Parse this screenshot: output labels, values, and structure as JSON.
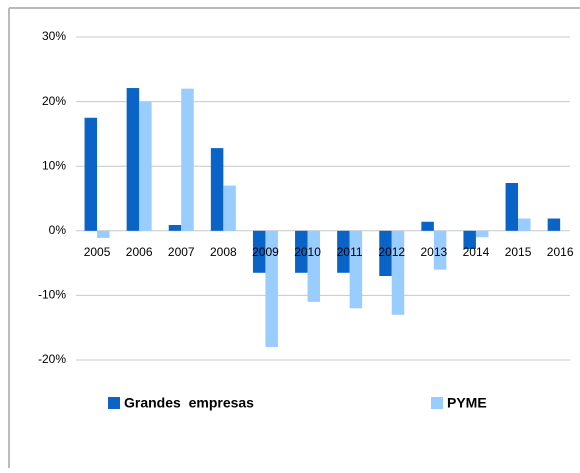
{
  "chart_data": {
    "type": "bar",
    "categories": [
      "2005",
      "2006",
      "2007",
      "2008",
      "2009",
      "2010",
      "2011",
      "2012",
      "2013",
      "2014",
      "2015",
      "2016"
    ],
    "series": [
      {
        "name": "Grandes  empresas",
        "color": "#0a64c8",
        "values": [
          17.5,
          22.1,
          0.9,
          12.8,
          -6.5,
          -6.5,
          -6.5,
          -7,
          1.4,
          -2.8,
          7.4,
          1.9
        ]
      },
      {
        "name": "PYME",
        "color": "#99ccff",
        "values": [
          -1.1,
          20,
          22,
          7,
          -18,
          -11,
          -12,
          -13,
          -6,
          -1,
          1.9,
          null
        ]
      }
    ],
    "ylim": [
      -20,
      30
    ],
    "yticks": [
      {
        "value": -20,
        "label": "-20%"
      },
      {
        "value": -10,
        "label": "-10%"
      },
      {
        "value": 0,
        "label": "0%"
      },
      {
        "value": 10,
        "label": "10%"
      },
      {
        "value": 20,
        "label": "20%"
      },
      {
        "value": 30,
        "label": "30%"
      }
    ],
    "grid": true,
    "legend": "bottom"
  }
}
